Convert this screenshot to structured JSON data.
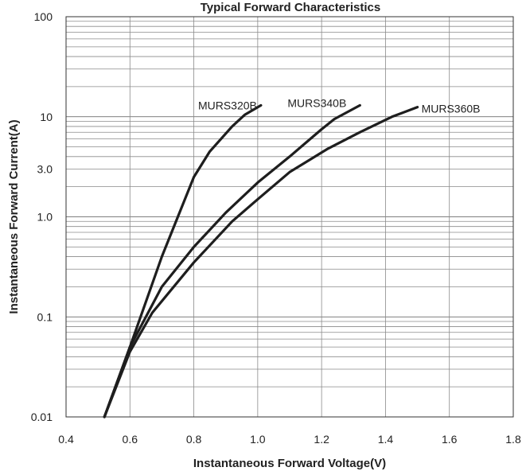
{
  "chart_data": {
    "type": "line",
    "title": "Typical Forward Characteristics",
    "xlabel": "Instantaneous Forward Voltage(V)",
    "ylabel": "Instantaneous Forward Current(A)",
    "xlim": [
      0.4,
      1.8
    ],
    "ylim": [
      0.01,
      100
    ],
    "yscale": "log",
    "grid": true,
    "x_ticks": [
      {
        "value": 0.4,
        "label": "0.4"
      },
      {
        "value": 0.6,
        "label": "0.6"
      },
      {
        "value": 0.8,
        "label": "0.8"
      },
      {
        "value": 1.0,
        "label": "1.0"
      },
      {
        "value": 1.2,
        "label": "1.2"
      },
      {
        "value": 1.4,
        "label": "1.4"
      },
      {
        "value": 1.6,
        "label": "1.6"
      },
      {
        "value": 1.8,
        "label": "1.8"
      }
    ],
    "y_ticks": [
      {
        "value": 0.01,
        "label": "0.01"
      },
      {
        "value": 0.1,
        "label": "0.1"
      },
      {
        "value": 1,
        "label": "1.0"
      },
      {
        "value": 3,
        "label": "3.0"
      },
      {
        "value": 10,
        "label": "10"
      },
      {
        "value": 100,
        "label": "100"
      }
    ],
    "series": [
      {
        "name": "MURS320B",
        "x": [
          0.52,
          0.6,
          0.7,
          0.75,
          0.8,
          0.85,
          0.92,
          0.96,
          1.01
        ],
        "y": [
          0.01,
          0.05,
          0.4,
          1.0,
          2.5,
          4.5,
          8.0,
          10.5,
          13.0
        ]
      },
      {
        "name": "MURS340B",
        "x": [
          0.52,
          0.6,
          0.7,
          0.8,
          0.9,
          1.0,
          1.1,
          1.2,
          1.24,
          1.32
        ],
        "y": [
          0.01,
          0.05,
          0.2,
          0.5,
          1.1,
          2.2,
          4.0,
          7.5,
          9.5,
          13.0
        ]
      },
      {
        "name": "MURS360B",
        "x": [
          0.52,
          0.6,
          0.67,
          0.8,
          0.92,
          1.0,
          1.1,
          1.22,
          1.32,
          1.42,
          1.5
        ],
        "y": [
          0.01,
          0.045,
          0.11,
          0.35,
          0.9,
          1.5,
          2.8,
          4.8,
          7.0,
          10.0,
          12.5
        ]
      }
    ]
  }
}
